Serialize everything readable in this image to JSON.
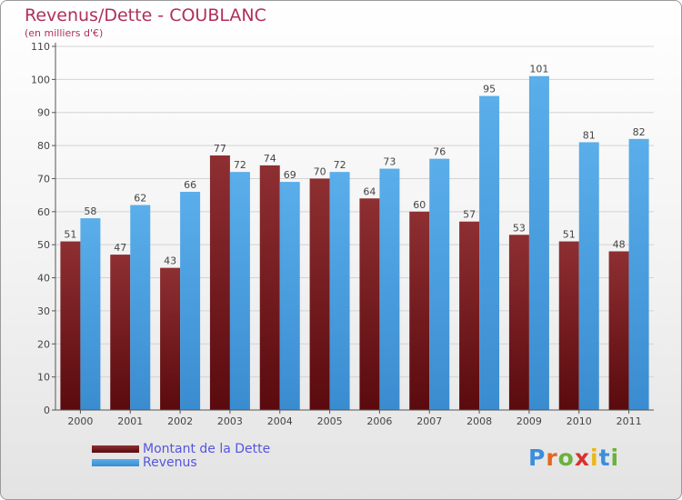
{
  "title": "Revenus/Dette - COUBLANC",
  "subtitle": "(en milliers d'€)",
  "colors": {
    "dette_light": "#8e2f32",
    "dette_dark": "#5a0a0e",
    "revenus_light": "#5aaeea",
    "revenus_dark": "#3a8cd0",
    "grid": "#d3d3d3",
    "text": "#444444"
  },
  "legend": {
    "dette": "Montant de la Dette",
    "revenus": "Revenus"
  },
  "logo": {
    "letters": [
      "P",
      "r",
      "o",
      "x",
      "i",
      "t",
      "i"
    ],
    "colors": [
      "#3a8fdc",
      "#e8651c",
      "#6ab23c",
      "#d9322d",
      "#e8b81c",
      "#3a8fdc",
      "#6ab23c"
    ]
  },
  "chart_data": {
    "type": "bar",
    "title": "Revenus/Dette - COUBLANC",
    "subtitle": "(en milliers d'€)",
    "xlabel": "",
    "ylabel": "",
    "ylim": [
      0,
      110
    ],
    "yticks": [
      0,
      10,
      20,
      30,
      40,
      50,
      60,
      70,
      80,
      90,
      100,
      110
    ],
    "grid": true,
    "legend_position": "bottom-left",
    "categories": [
      "2000",
      "2001",
      "2002",
      "2003",
      "2004",
      "2005",
      "2006",
      "2007",
      "2008",
      "2009",
      "2010",
      "2011"
    ],
    "series": [
      {
        "name": "Montant de la Dette",
        "values": [
          51,
          47,
          43,
          77,
          74,
          70,
          64,
          60,
          57,
          53,
          51,
          48
        ]
      },
      {
        "name": "Revenus",
        "values": [
          58,
          62,
          66,
          72,
          69,
          72,
          73,
          76,
          95,
          101,
          81,
          82
        ]
      }
    ]
  }
}
